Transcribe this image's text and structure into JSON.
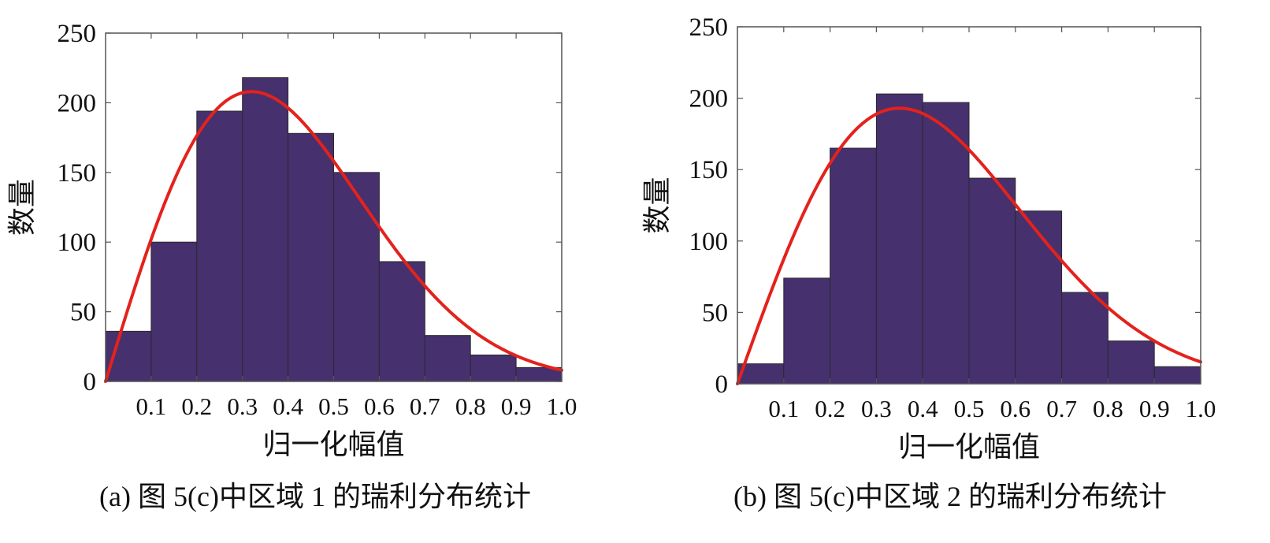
{
  "chart_data": [
    {
      "type": "bar",
      "caption": "(a)  图 5(c)中区域 1 的瑞利分布统计",
      "xlabel": "归一化幅值",
      "ylabel": "数量",
      "xlim": [
        0,
        1.0
      ],
      "ylim": [
        0,
        250
      ],
      "xticks": [
        "0.1",
        "0.2",
        "0.3",
        "0.4",
        "0.5",
        "0.6",
        "0.7",
        "0.8",
        "0.9",
        "1.0"
      ],
      "yticks": [
        "0",
        "50",
        "100",
        "150",
        "200",
        "250"
      ],
      "bin_edges": [
        0,
        0.1,
        0.2,
        0.3,
        0.4,
        0.5,
        0.6,
        0.7,
        0.8,
        0.9,
        1.0
      ],
      "values": [
        36,
        100,
        194,
        218,
        178,
        150,
        86,
        33,
        19,
        10
      ],
      "fit_curve": {
        "type": "rayleigh",
        "peak_x": 0.32,
        "peak_y": 208,
        "color": "#e3221c"
      },
      "bar_color": "#46306e",
      "grid": false
    },
    {
      "type": "bar",
      "caption": "(b)  图 5(c)中区域 2 的瑞利分布统计",
      "xlabel": "归一化幅值",
      "ylabel": "数量",
      "xlim": [
        0,
        1.0
      ],
      "ylim": [
        0,
        250
      ],
      "xticks": [
        "0.1",
        "0.2",
        "0.3",
        "0.4",
        "0.5",
        "0.6",
        "0.7",
        "0.8",
        "0.9",
        "1.0"
      ],
      "yticks": [
        "0",
        "50",
        "100",
        "150",
        "200",
        "250"
      ],
      "bin_edges": [
        0,
        0.1,
        0.2,
        0.3,
        0.4,
        0.5,
        0.6,
        0.7,
        0.8,
        0.9,
        1.0
      ],
      "values": [
        14,
        74,
        165,
        203,
        197,
        144,
        121,
        64,
        30,
        12
      ],
      "fit_curve": {
        "type": "rayleigh",
        "peak_x": 0.35,
        "peak_y": 193,
        "color": "#e3221c"
      },
      "bar_color": "#46306e",
      "grid": false
    }
  ]
}
